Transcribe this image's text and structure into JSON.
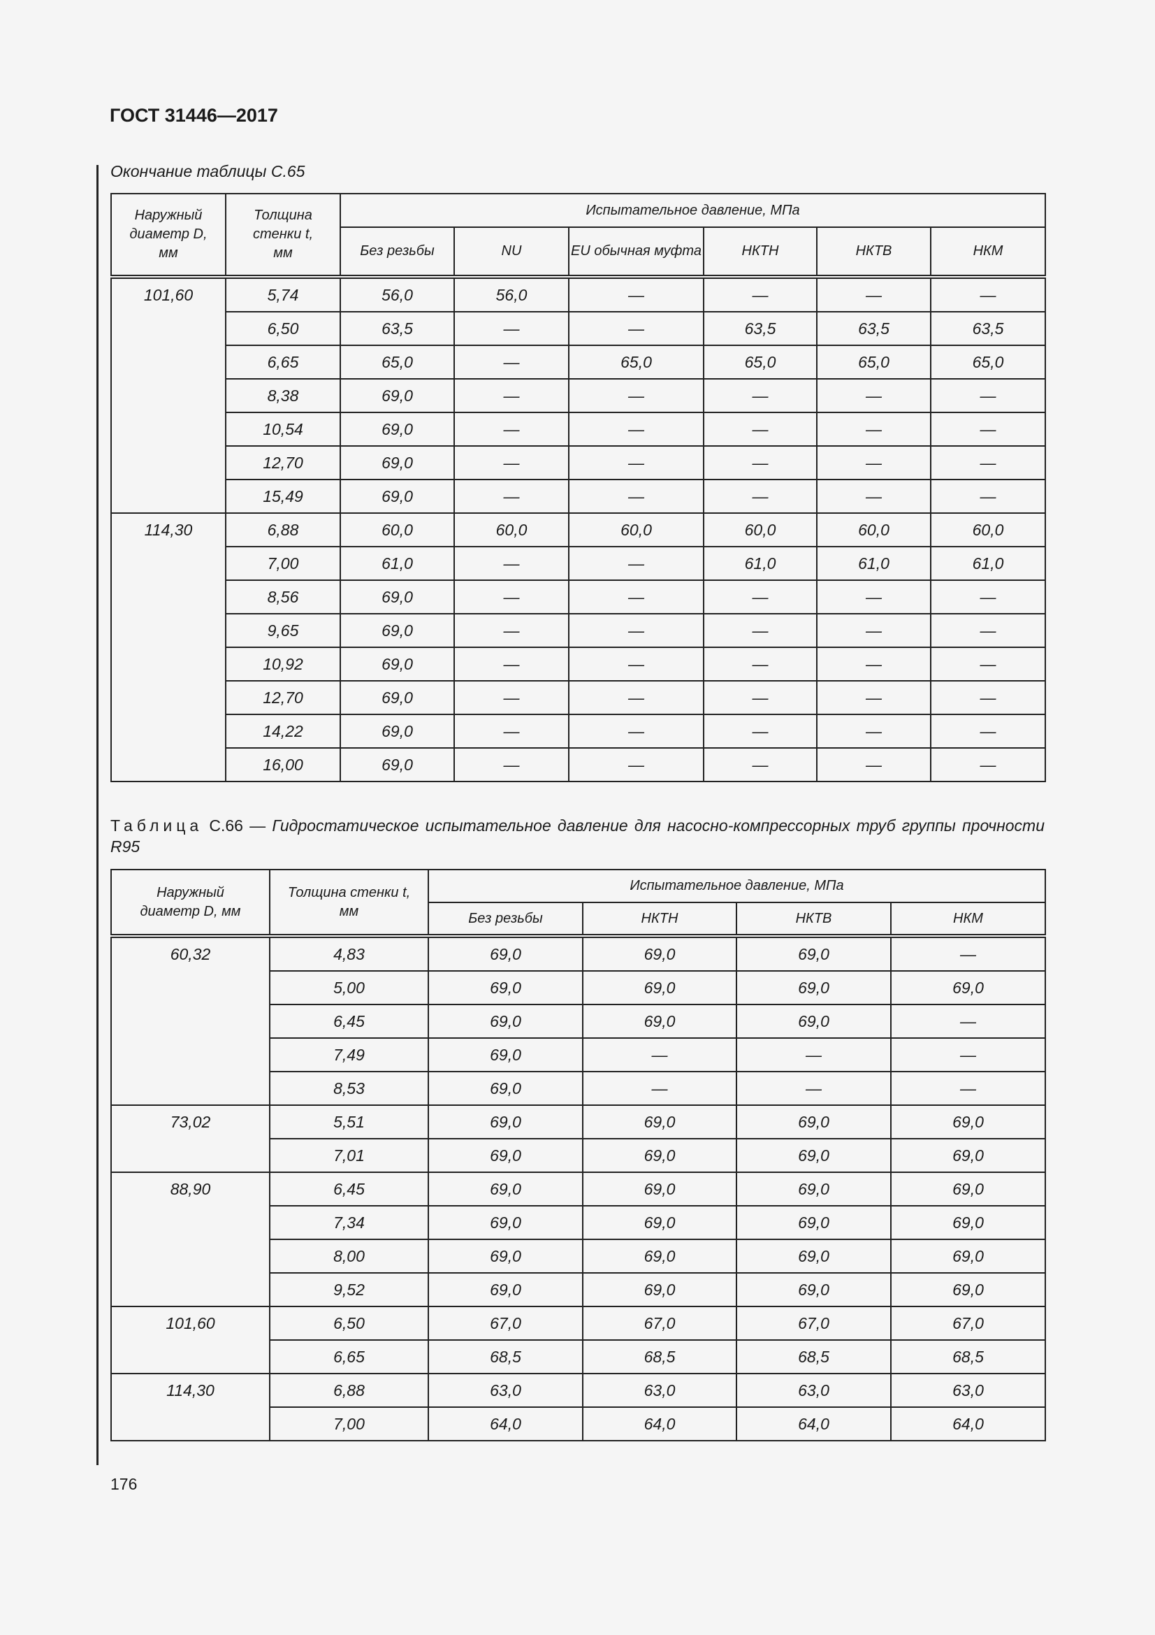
{
  "header": {
    "title": "ГОСТ 31446—2017"
  },
  "table1": {
    "caption": "Окончание таблицы С.65",
    "headers": {
      "diameter": "Наружный диаметр D, мм",
      "thickness": "Толщина стенки t, мм",
      "pressure": "Испытательное давление, МПа",
      "columns": [
        "Без резьбы",
        "NU",
        "EU обычная муфта",
        "НКТН",
        "НКТВ",
        "НКМ"
      ]
    },
    "groups": [
      {
        "d": "101,60",
        "rows": [
          {
            "t": "5,74",
            "v": [
              "56,0",
              "56,0",
              "—",
              "—",
              "—",
              "—"
            ]
          },
          {
            "t": "6,50",
            "v": [
              "63,5",
              "—",
              "—",
              "63,5",
              "63,5",
              "63,5"
            ]
          },
          {
            "t": "6,65",
            "v": [
              "65,0",
              "—",
              "65,0",
              "65,0",
              "65,0",
              "65,0"
            ]
          },
          {
            "t": "8,38",
            "v": [
              "69,0",
              "—",
              "—",
              "—",
              "—",
              "—"
            ]
          },
          {
            "t": "10,54",
            "v": [
              "69,0",
              "—",
              "—",
              "—",
              "—",
              "—"
            ]
          },
          {
            "t": "12,70",
            "v": [
              "69,0",
              "—",
              "—",
              "—",
              "—",
              "—"
            ]
          },
          {
            "t": "15,49",
            "v": [
              "69,0",
              "—",
              "—",
              "—",
              "—",
              "—"
            ]
          }
        ]
      },
      {
        "d": "114,30",
        "rows": [
          {
            "t": "6,88",
            "v": [
              "60,0",
              "60,0",
              "60,0",
              "60,0",
              "60,0",
              "60,0"
            ]
          },
          {
            "t": "7,00",
            "v": [
              "61,0",
              "—",
              "—",
              "61,0",
              "61,0",
              "61,0"
            ]
          },
          {
            "t": "8,56",
            "v": [
              "69,0",
              "—",
              "—",
              "—",
              "—",
              "—"
            ]
          },
          {
            "t": "9,65",
            "v": [
              "69,0",
              "—",
              "—",
              "—",
              "—",
              "—"
            ]
          },
          {
            "t": "10,92",
            "v": [
              "69,0",
              "—",
              "—",
              "—",
              "—",
              "—"
            ]
          },
          {
            "t": "12,70",
            "v": [
              "69,0",
              "—",
              "—",
              "—",
              "—",
              "—"
            ]
          },
          {
            "t": "14,22",
            "v": [
              "69,0",
              "—",
              "—",
              "—",
              "—",
              "—"
            ]
          },
          {
            "t": "16,00",
            "v": [
              "69,0",
              "—",
              "—",
              "—",
              "—",
              "—"
            ]
          }
        ]
      }
    ]
  },
  "table2": {
    "caption_label": "Таблица",
    "caption_number": "С.66 —",
    "caption_text": "Гидростатическое испытательное давление для насосно-компрессорных труб группы прочности R95",
    "headers": {
      "diameter": "Наружный диаметр D, мм",
      "thickness": "Толщина стенки t, мм",
      "pressure": "Испытательное давление, МПа",
      "columns": [
        "Без резьбы",
        "НКТН",
        "НКТВ",
        "НКМ"
      ]
    },
    "groups": [
      {
        "d": "60,32",
        "rows": [
          {
            "t": "4,83",
            "v": [
              "69,0",
              "69,0",
              "69,0",
              "—"
            ]
          },
          {
            "t": "5,00",
            "v": [
              "69,0",
              "69,0",
              "69,0",
              "69,0"
            ]
          },
          {
            "t": "6,45",
            "v": [
              "69,0",
              "69,0",
              "69,0",
              "—"
            ]
          },
          {
            "t": "7,49",
            "v": [
              "69,0",
              "—",
              "—",
              "—"
            ]
          },
          {
            "t": "8,53",
            "v": [
              "69,0",
              "—",
              "—",
              "—"
            ]
          }
        ]
      },
      {
        "d": "73,02",
        "rows": [
          {
            "t": "5,51",
            "v": [
              "69,0",
              "69,0",
              "69,0",
              "69,0"
            ]
          },
          {
            "t": "7,01",
            "v": [
              "69,0",
              "69,0",
              "69,0",
              "69,0"
            ]
          }
        ]
      },
      {
        "d": "88,90",
        "rows": [
          {
            "t": "6,45",
            "v": [
              "69,0",
              "69,0",
              "69,0",
              "69,0"
            ]
          },
          {
            "t": "7,34",
            "v": [
              "69,0",
              "69,0",
              "69,0",
              "69,0"
            ]
          },
          {
            "t": "8,00",
            "v": [
              "69,0",
              "69,0",
              "69,0",
              "69,0"
            ]
          },
          {
            "t": "9,52",
            "v": [
              "69,0",
              "69,0",
              "69,0",
              "69,0"
            ]
          }
        ]
      },
      {
        "d": "101,60",
        "rows": [
          {
            "t": "6,50",
            "v": [
              "67,0",
              "67,0",
              "67,0",
              "67,0"
            ]
          },
          {
            "t": "6,65",
            "v": [
              "68,5",
              "68,5",
              "68,5",
              "68,5"
            ]
          }
        ]
      },
      {
        "d": "114,30",
        "rows": [
          {
            "t": "6,88",
            "v": [
              "63,0",
              "63,0",
              "63,0",
              "63,0"
            ]
          },
          {
            "t": "7,00",
            "v": [
              "64,0",
              "64,0",
              "64,0",
              "64,0"
            ]
          }
        ]
      }
    ]
  },
  "footer": {
    "page_number": "176"
  }
}
